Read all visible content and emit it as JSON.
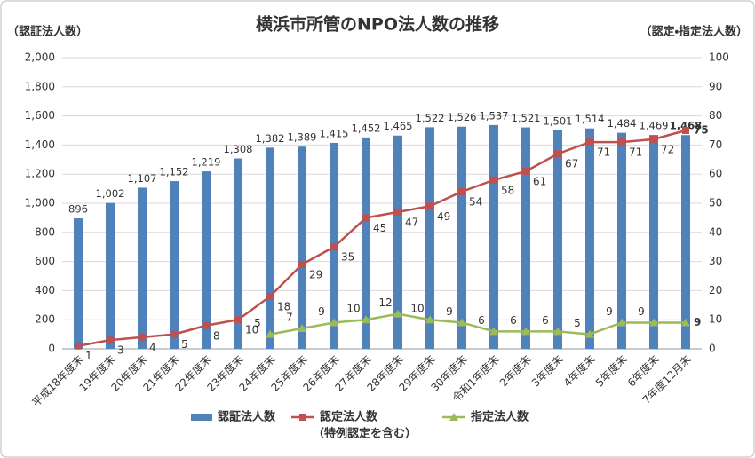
{
  "chart_data": {
    "type": "bar_line",
    "title": "横浜市所管のNPO法人数の推移",
    "y_label": "（認証法人数）",
    "y2_label": "（認定・指定法人数）",
    "categories": [
      "平成18年度末",
      "19年度末",
      "20年度末",
      "21年度末",
      "22年度末",
      "23年度末",
      "24年度末",
      "25年度末",
      "26年度末",
      "27年度末",
      "28年度末",
      "29年度末",
      "30年度末",
      "令和1年度末",
      "2年度末",
      "3年度末",
      "4年度末",
      "5年度末",
      "6年度末",
      "7年度12月末"
    ],
    "series": [
      {
        "name": "認証法人数",
        "type": "bar",
        "color": "#4f81bd",
        "values": [
          896,
          1002,
          1107,
          1152,
          1219,
          1308,
          1382,
          1389,
          1415,
          1452,
          1465,
          1522,
          1526,
          1537,
          1521,
          1501,
          1514,
          1484,
          1469,
          1468
        ],
        "value_labels": [
          "896",
          "1,002",
          "1,107",
          "1,152",
          "1,219",
          "1,308",
          "1,382",
          "1,389",
          "1,415",
          "1,452",
          "1,465",
          "1,522",
          "1,526",
          "1,537",
          "1,521",
          "1,501",
          "1,514",
          "1,484",
          "1,469",
          "1,468"
        ]
      },
      {
        "name": "認定法人数",
        "note": "（特例認定を含む）",
        "type": "line",
        "marker": "square",
        "axis": "y2",
        "color": "#c0504d",
        "values": [
          1,
          3,
          4,
          5,
          8,
          10,
          18,
          29,
          35,
          45,
          47,
          49,
          54,
          58,
          61,
          67,
          71,
          71,
          72,
          75
        ]
      },
      {
        "name": "指定法人数",
        "type": "line",
        "marker": "triangle",
        "axis": "y2",
        "color": "#9bbb59",
        "values": [
          null,
          null,
          null,
          null,
          null,
          null,
          5,
          7,
          9,
          10,
          12,
          10,
          9,
          6,
          6,
          6,
          5,
          9,
          9,
          9
        ]
      }
    ],
    "highlight_last_color": "#ff0000",
    "ylim": [
      0,
      2000
    ],
    "yticks": [
      0,
      200,
      400,
      600,
      800,
      {
        "value": 1000,
        "label": "1,000"
      },
      {
        "value": 1200,
        "label": "1,200"
      },
      {
        "value": 1400,
        "label": "1,400"
      },
      {
        "value": 1600,
        "label": "1,600"
      },
      {
        "value": 1800,
        "label": "1,800"
      },
      {
        "value": 2000,
        "label": "2,000"
      }
    ],
    "y2lim": [
      0,
      100
    ],
    "y2ticks": [
      0,
      10,
      20,
      30,
      40,
      50,
      60,
      70,
      80,
      90,
      100
    ],
    "grid": true
  }
}
